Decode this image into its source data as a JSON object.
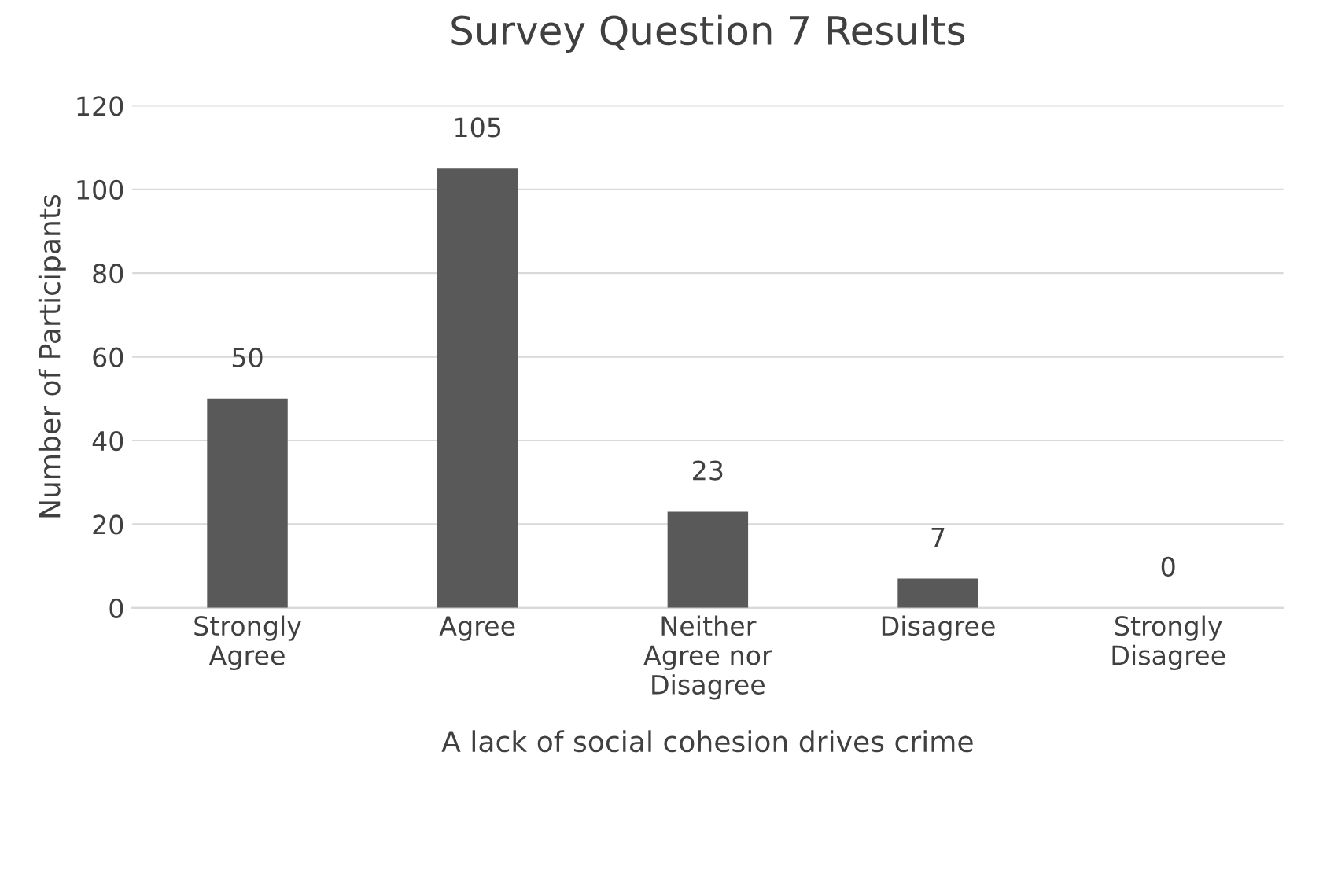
{
  "chart_data": {
    "type": "bar",
    "title": "Survey Question 7 Results",
    "xlabel": "A lack of social cohesion drives crime",
    "ylabel": "Number of Participants",
    "categories": [
      "Strongly Agree",
      "Agree",
      "Neither Agree nor Disagree",
      "Disagree",
      "Strongly Disagree"
    ],
    "values": [
      50,
      105,
      23,
      7,
      0
    ],
    "color": "#595959",
    "ylim": [
      0,
      120
    ],
    "yticks": [
      0,
      20,
      40,
      60,
      80,
      100,
      120
    ],
    "grid": "y",
    "data_labels": true
  }
}
